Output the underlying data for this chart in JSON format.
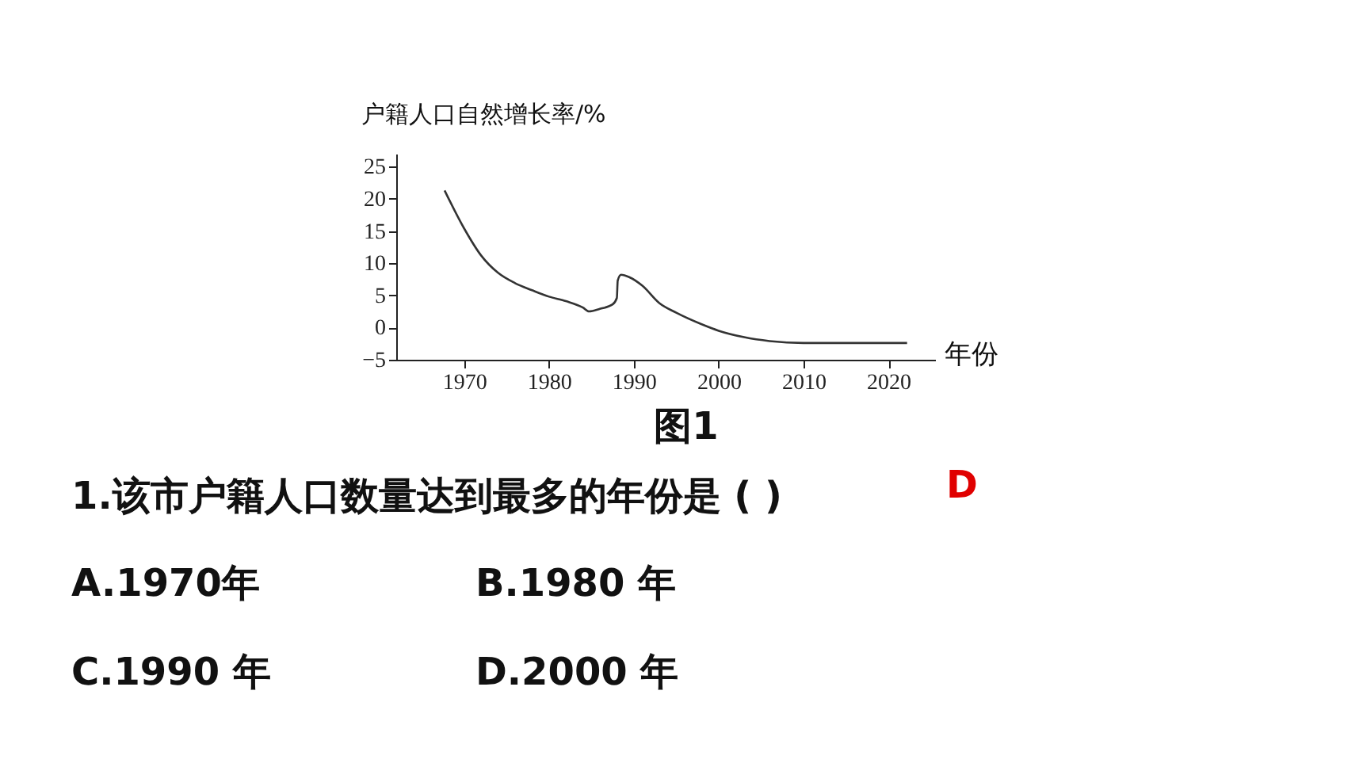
{
  "chart_data": {
    "type": "line",
    "title": "图1",
    "xlabel": "年份",
    "ylabel": "户籍人口自然增长率/%",
    "x": [
      1967.7,
      1970,
      1972,
      1974,
      1976,
      1978,
      1980,
      1982,
      1984,
      1984.7,
      1986,
      1987.5,
      1988,
      1988.1,
      1988.5,
      1989.5,
      1991,
      1993,
      1995,
      1998,
      2000,
      2003,
      2006,
      2010,
      2015,
      2022.2
    ],
    "series": [
      {
        "color": "#333333",
        "values": [
          21.3,
          15.4,
          11.2,
          8.5,
          6.9,
          5.8,
          4.8,
          4.1,
          3.1,
          2.5,
          2.9,
          3.6,
          4.6,
          7.3,
          8.2,
          7.8,
          6.5,
          3.8,
          2.3,
          0.5,
          -0.5,
          -1.5,
          -2.1,
          -2.4,
          -2.4,
          -2.4
        ]
      }
    ],
    "xlim": [
      1962,
      2025.5
    ],
    "xticks": [
      1970,
      1980,
      1990,
      2000,
      2010,
      2020
    ],
    "ylim": [
      -5,
      27
    ],
    "yticks": [
      {
        "value": -5,
        "label": "−5"
      },
      0,
      5,
      10,
      15,
      20,
      25
    ],
    "grid": false,
    "marker": "none",
    "line_style": "solid",
    "annotations": [
      "1.该市户籍人口数量达到最多的年份是 (        )",
      "D",
      "A.1970年",
      "B.1980 年",
      "C.1990 年",
      "D.2000 年"
    ]
  }
}
